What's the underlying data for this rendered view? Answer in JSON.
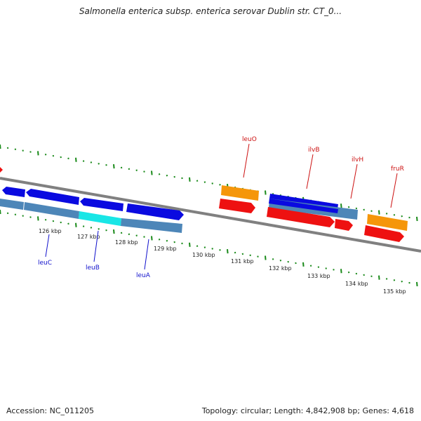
{
  "title": "Salmonella enterica subsp. enterica serovar Dublin str. CT_0...",
  "footer": {
    "accession": "Accession: NC_011205",
    "topology": "Topology: circular; Length: 4,842,908 bp; Genes: 4,618"
  },
  "colors": {
    "backbone": "#808080",
    "tick": "#1a8a1a",
    "blue_gene": "#0a0ae0",
    "steel_gene": "#4d86b8",
    "cyan_gene": "#19e6e6",
    "orange_gene": "#f5960a",
    "red_gene": "#ee1111",
    "blue_label": "#1111cc",
    "red_label": "#cc1111"
  },
  "ticks": [
    "126 kbp",
    "127 kbp",
    "128 kbp",
    "129 kbp",
    "130 kbp",
    "131 kbp",
    "132 kbp",
    "133 kbp",
    "134 kbp",
    "135 kbp"
  ],
  "genes_left": [
    {
      "name": "leuC",
      "color": "blue"
    },
    {
      "name": "leuB",
      "color": "blue"
    },
    {
      "name": "leuA",
      "color": "blue"
    }
  ],
  "genes_right": [
    {
      "name": "leuO",
      "color": "red"
    },
    {
      "name": "ilvB",
      "color": "red"
    },
    {
      "name": "ilvH",
      "color": "red"
    },
    {
      "name": "fruR",
      "color": "red"
    }
  ]
}
